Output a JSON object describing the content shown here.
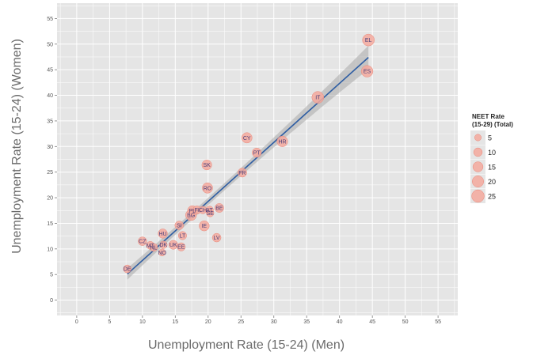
{
  "chart_data": {
    "type": "scatter",
    "xlabel": "Unemployment Rate (15-24) (Men)",
    "ylabel": "Unemployment Rate (15-24) (Women)",
    "xlim": [
      -3,
      58
    ],
    "ylim": [
      -3,
      58
    ],
    "x_ticks": [
      0,
      5,
      10,
      15,
      20,
      25,
      30,
      35,
      40,
      45,
      50,
      55
    ],
    "y_ticks": [
      0,
      5,
      10,
      15,
      20,
      25,
      30,
      35,
      40,
      45,
      50,
      55
    ],
    "grid": true,
    "size_legend": {
      "title": "NEET Rate (15-29) (Total)",
      "entries": [
        5,
        10,
        15,
        20,
        25
      ]
    },
    "points": [
      {
        "label": "DE",
        "x": 7.7,
        "y": 6.1,
        "size": 8
      },
      {
        "label": "CZ",
        "x": 10.0,
        "y": 11.5,
        "size": 10
      },
      {
        "label": "MT",
        "x": 11.2,
        "y": 10.7,
        "size": 8
      },
      {
        "label": "NL",
        "x": 11.7,
        "y": 10.3,
        "size": 8
      },
      {
        "label": "DK",
        "x": 13.2,
        "y": 10.8,
        "size": 7
      },
      {
        "label": "NO",
        "x": 13.0,
        "y": 9.3,
        "size": 6
      },
      {
        "label": "UK",
        "x": 14.7,
        "y": 10.8,
        "size": 11
      },
      {
        "label": "HU",
        "x": 13.1,
        "y": 13.0,
        "size": 12
      },
      {
        "label": "LT",
        "x": 16.1,
        "y": 12.6,
        "size": 9
      },
      {
        "label": "EE",
        "x": 15.9,
        "y": 10.4,
        "size": 9
      },
      {
        "label": "SI",
        "x": 15.6,
        "y": 14.6,
        "size": 10
      },
      {
        "label": "IE",
        "x": 19.4,
        "y": 14.5,
        "size": 15
      },
      {
        "label": "LV",
        "x": 21.3,
        "y": 12.2,
        "size": 10
      },
      {
        "label": "PL",
        "x": 17.6,
        "y": 17.5,
        "size": 13
      },
      {
        "label": "BG",
        "x": 17.4,
        "y": 16.6,
        "size": 18
      },
      {
        "label": "FI",
        "x": 18.3,
        "y": 17.6,
        "size": 9
      },
      {
        "label": "CH",
        "x": 19.2,
        "y": 17.6,
        "size": 7
      },
      {
        "label": "AT",
        "x": 20.2,
        "y": 17.6,
        "size": 8
      },
      {
        "label": "SE",
        "x": 20.3,
        "y": 17.0,
        "size": 7
      },
      {
        "label": "BE",
        "x": 21.7,
        "y": 18.0,
        "size": 11
      },
      {
        "label": "RO",
        "x": 19.9,
        "y": 21.9,
        "size": 16
      },
      {
        "label": "FR",
        "x": 25.2,
        "y": 24.9,
        "size": 11
      },
      {
        "label": "SK",
        "x": 19.8,
        "y": 26.4,
        "size": 14
      },
      {
        "label": "PT",
        "x": 27.4,
        "y": 28.8,
        "size": 12
      },
      {
        "label": "CY",
        "x": 25.9,
        "y": 31.7,
        "size": 16
      },
      {
        "label": "HR",
        "x": 31.3,
        "y": 31.0,
        "size": 17
      },
      {
        "label": "IT",
        "x": 36.7,
        "y": 39.6,
        "size": 22
      },
      {
        "label": "ES",
        "x": 44.2,
        "y": 44.7,
        "size": 21
      },
      {
        "label": "EL",
        "x": 44.4,
        "y": 50.8,
        "size": 22
      }
    ],
    "trend": {
      "x0": 7.7,
      "y0": 5.1,
      "x1": 44.4,
      "y1": 47.4
    }
  }
}
